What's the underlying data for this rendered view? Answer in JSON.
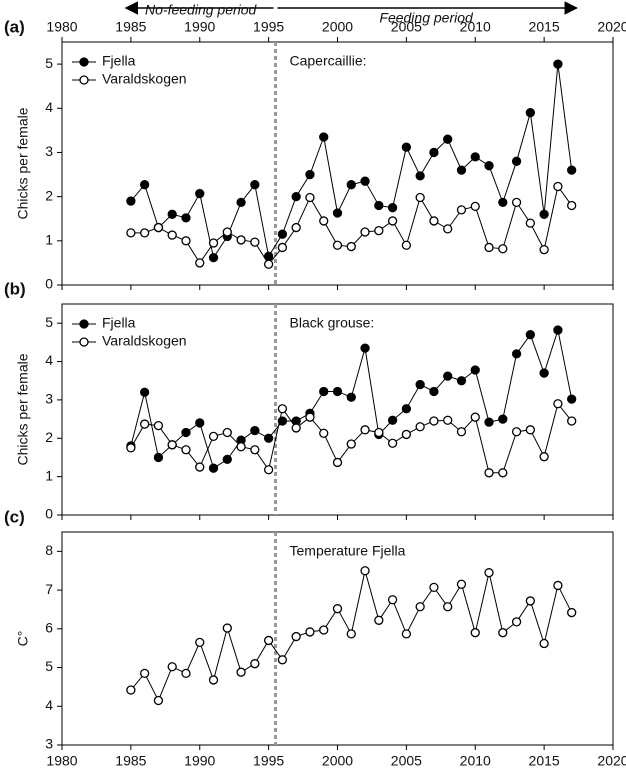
{
  "chart_data": [
    {
      "type": "line",
      "panel_label": "(a)",
      "annotation": "Capercaillie:",
      "ylabel": "Chicks per female",
      "period_labels": [
        "No-feeding period",
        "Feeding period"
      ],
      "xaxis_labels": "top",
      "vline_x": 1995.5,
      "x": [
        1985,
        1986,
        1987,
        1988,
        1989,
        1990,
        1991,
        1992,
        1993,
        1994,
        1995,
        1996,
        1997,
        1998,
        1999,
        2000,
        2001,
        2002,
        2003,
        2004,
        2005,
        2006,
        2007,
        2008,
        2009,
        2010,
        2011,
        2012,
        2013,
        2014,
        2015,
        2016,
        2017
      ],
      "xlim": [
        1980,
        2020
      ],
      "xticks": [
        1980,
        1985,
        1990,
        1995,
        2000,
        2005,
        2010,
        2015,
        2020
      ],
      "ylim": [
        0,
        5.5
      ],
      "yticks": [
        0,
        1,
        2,
        3,
        4,
        5
      ],
      "series": [
        {
          "name": "Fjella",
          "color": "#000000",
          "marker_fill": "#000000",
          "values": [
            1.9,
            2.27,
            1.3,
            1.6,
            1.52,
            2.07,
            0.62,
            1.1,
            1.87,
            2.27,
            0.65,
            1.15,
            2.0,
            2.5,
            3.35,
            1.63,
            2.27,
            2.35,
            1.8,
            1.75,
            3.12,
            2.47,
            3.0,
            3.3,
            2.6,
            2.9,
            2.7,
            1.87,
            2.8,
            3.9,
            1.6,
            5.0,
            2.6
          ]
        },
        {
          "name": "Varaldskogen",
          "color": "#000000",
          "marker_fill": "#ffffff",
          "values": [
            1.18,
            1.18,
            1.3,
            1.13,
            1.0,
            0.5,
            0.95,
            1.2,
            1.02,
            0.97,
            0.47,
            0.85,
            1.3,
            1.98,
            1.45,
            0.9,
            0.87,
            1.2,
            1.23,
            1.45,
            0.9,
            1.98,
            1.45,
            1.27,
            1.7,
            1.78,
            0.85,
            0.82,
            1.87,
            1.4,
            0.8,
            2.23,
            1.8
          ]
        }
      ]
    },
    {
      "type": "line",
      "panel_label": "(b)",
      "annotation": "Black grouse:",
      "ylabel": "Chicks per female",
      "xaxis_labels": "none",
      "vline_x": 1995.5,
      "x": [
        1985,
        1986,
        1987,
        1988,
        1989,
        1990,
        1991,
        1992,
        1993,
        1994,
        1995,
        1996,
        1997,
        1998,
        1999,
        2000,
        2001,
        2002,
        2003,
        2004,
        2005,
        2006,
        2007,
        2008,
        2009,
        2010,
        2011,
        2012,
        2013,
        2014,
        2015,
        2016,
        2017
      ],
      "xlim": [
        1980,
        2020
      ],
      "xticks": [
        1980,
        1985,
        1990,
        1995,
        2000,
        2005,
        2010,
        2015,
        2020
      ],
      "ylim": [
        0,
        5.5
      ],
      "yticks": [
        0,
        1,
        2,
        3,
        4,
        5
      ],
      "series": [
        {
          "name": "Fjella",
          "color": "#000000",
          "marker_fill": "#000000",
          "values": [
            1.8,
            3.2,
            1.5,
            1.83,
            2.15,
            2.4,
            1.22,
            1.45,
            1.95,
            2.2,
            2.0,
            2.45,
            2.45,
            2.65,
            3.22,
            3.22,
            3.07,
            4.35,
            2.1,
            2.47,
            2.77,
            3.4,
            3.22,
            3.62,
            3.5,
            3.78,
            2.42,
            2.5,
            4.2,
            4.7,
            3.7,
            4.82,
            3.02
          ]
        },
        {
          "name": "Varaldskogen",
          "color": "#000000",
          "marker_fill": "#ffffff",
          "values": [
            1.75,
            2.37,
            2.33,
            1.83,
            1.7,
            1.25,
            2.05,
            2.15,
            1.78,
            1.7,
            1.18,
            2.77,
            2.27,
            2.55,
            2.13,
            1.37,
            1.85,
            2.22,
            2.15,
            1.87,
            2.1,
            2.3,
            2.45,
            2.47,
            2.17,
            2.55,
            1.1,
            1.1,
            2.17,
            2.22,
            1.52,
            2.9,
            2.45
          ]
        }
      ]
    },
    {
      "type": "line",
      "panel_label": "(c)",
      "annotation": "Temperature Fjella",
      "ylabel": "C°",
      "xaxis_labels": "bottom",
      "vline_x": 1995.5,
      "x": [
        1985,
        1986,
        1987,
        1988,
        1989,
        1990,
        1991,
        1992,
        1993,
        1994,
        1995,
        1996,
        1997,
        1998,
        1999,
        2000,
        2001,
        2002,
        2003,
        2004,
        2005,
        2006,
        2007,
        2008,
        2009,
        2010,
        2011,
        2012,
        2013,
        2014,
        2015,
        2016,
        2017
      ],
      "xlim": [
        1980,
        2020
      ],
      "xticks": [
        1980,
        1985,
        1990,
        1995,
        2000,
        2005,
        2010,
        2015,
        2020
      ],
      "ylim": [
        3,
        8.5
      ],
      "yticks": [
        3,
        4,
        5,
        6,
        7,
        8
      ],
      "series": [
        {
          "color": "#000000",
          "marker_fill": "#ffffff",
          "values": [
            4.42,
            4.85,
            4.15,
            5.02,
            4.85,
            5.65,
            4.68,
            6.02,
            4.88,
            5.1,
            5.7,
            5.2,
            5.8,
            5.92,
            5.97,
            6.52,
            5.87,
            7.5,
            6.22,
            6.75,
            5.87,
            6.57,
            7.07,
            6.57,
            7.15,
            5.9,
            7.45,
            5.9,
            6.18,
            6.72,
            5.62,
            7.12,
            6.42
          ]
        }
      ]
    }
  ]
}
